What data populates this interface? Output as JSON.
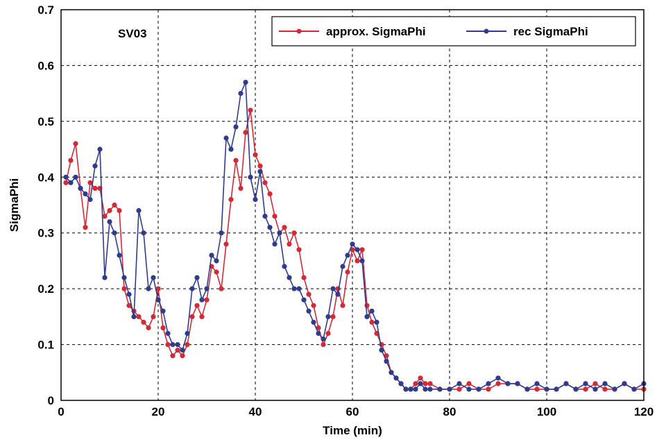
{
  "chart_data": {
    "type": "line",
    "title": "",
    "annotation": "SV03",
    "xlabel": "Time (min)",
    "ylabel": "SigmaPhi",
    "xlim": [
      0,
      120
    ],
    "ylim": [
      0,
      0.7
    ],
    "x_ticks": [
      "0",
      "20",
      "40",
      "60",
      "80",
      "100",
      "120"
    ],
    "y_ticks": [
      "0",
      "0.1",
      "0.2",
      "0.3",
      "0.4",
      "0.5",
      "0.6",
      "0.7"
    ],
    "grid": true,
    "legend_position": "top-right",
    "series": [
      {
        "name": "approx. SigmaPhi",
        "color": "#d42a35",
        "x": [
          1,
          2,
          3,
          4,
          5,
          6,
          7,
          8,
          9,
          10,
          11,
          12,
          13,
          14,
          15,
          16,
          17,
          18,
          19,
          20,
          21,
          22,
          23,
          24,
          25,
          26,
          27,
          28,
          29,
          30,
          31,
          32,
          33,
          34,
          35,
          36,
          37,
          38,
          39,
          40,
          41,
          42,
          43,
          44,
          45,
          46,
          47,
          48,
          49,
          50,
          51,
          52,
          53,
          54,
          55,
          56,
          57,
          58,
          59,
          60,
          61,
          62,
          63,
          64,
          65,
          66,
          67,
          68,
          69,
          70,
          71,
          72,
          73,
          74,
          75,
          76,
          78,
          80,
          82,
          84,
          86,
          88,
          90,
          92,
          94,
          96,
          98,
          100,
          102,
          104,
          106,
          108,
          110,
          112,
          114,
          116,
          118,
          120
        ],
        "values": [
          0.39,
          0.43,
          0.46,
          0.38,
          0.31,
          0.39,
          0.38,
          0.38,
          0.33,
          0.34,
          0.35,
          0.34,
          0.2,
          0.17,
          0.16,
          0.15,
          0.14,
          0.13,
          0.15,
          0.2,
          0.13,
          0.1,
          0.08,
          0.09,
          0.08,
          0.1,
          0.15,
          0.17,
          0.15,
          0.18,
          0.24,
          0.23,
          0.2,
          0.28,
          0.36,
          0.43,
          0.38,
          0.48,
          0.52,
          0.44,
          0.42,
          0.39,
          0.37,
          0.33,
          0.3,
          0.31,
          0.28,
          0.3,
          0.27,
          0.22,
          0.19,
          0.17,
          0.13,
          0.1,
          0.12,
          0.15,
          0.2,
          0.17,
          0.23,
          0.27,
          0.25,
          0.27,
          0.17,
          0.14,
          0.12,
          0.1,
          0.08,
          0.05,
          0.04,
          0.03,
          0.02,
          0.02,
          0.03,
          0.04,
          0.03,
          0.03,
          0.02,
          0.02,
          0.02,
          0.03,
          0.02,
          0.02,
          0.03,
          0.03,
          0.03,
          0.02,
          0.02,
          0.02,
          0.02,
          0.03,
          0.02,
          0.02,
          0.03,
          0.02,
          0.02,
          0.03,
          0.02,
          0.02
        ]
      },
      {
        "name": "rec SigmaPhi",
        "color": "#2f3c8e",
        "x": [
          1,
          2,
          3,
          4,
          5,
          6,
          7,
          8,
          9,
          10,
          11,
          12,
          13,
          14,
          15,
          16,
          17,
          18,
          19,
          20,
          21,
          22,
          23,
          24,
          25,
          26,
          27,
          28,
          29,
          30,
          31,
          32,
          33,
          34,
          35,
          36,
          37,
          38,
          39,
          40,
          41,
          42,
          43,
          44,
          45,
          46,
          47,
          48,
          49,
          50,
          51,
          52,
          53,
          54,
          55,
          56,
          57,
          58,
          59,
          60,
          61,
          62,
          63,
          64,
          65,
          66,
          67,
          68,
          69,
          70,
          71,
          72,
          73,
          74,
          75,
          76,
          78,
          80,
          82,
          84,
          86,
          88,
          90,
          92,
          94,
          96,
          98,
          100,
          102,
          104,
          106,
          108,
          110,
          112,
          114,
          116,
          118,
          120
        ],
        "values": [
          0.4,
          0.39,
          0.4,
          0.38,
          0.37,
          0.36,
          0.42,
          0.45,
          0.22,
          0.32,
          0.3,
          0.26,
          0.22,
          0.19,
          0.15,
          0.34,
          0.3,
          0.2,
          0.22,
          0.18,
          0.16,
          0.12,
          0.1,
          0.1,
          0.09,
          0.12,
          0.2,
          0.22,
          0.18,
          0.2,
          0.26,
          0.25,
          0.3,
          0.47,
          0.45,
          0.49,
          0.55,
          0.57,
          0.4,
          0.36,
          0.41,
          0.33,
          0.31,
          0.28,
          0.3,
          0.24,
          0.22,
          0.2,
          0.2,
          0.18,
          0.16,
          0.14,
          0.12,
          0.11,
          0.15,
          0.2,
          0.19,
          0.24,
          0.26,
          0.28,
          0.27,
          0.25,
          0.15,
          0.16,
          0.14,
          0.09,
          0.07,
          0.05,
          0.04,
          0.03,
          0.02,
          0.02,
          0.02,
          0.03,
          0.02,
          0.02,
          0.02,
          0.02,
          0.03,
          0.02,
          0.02,
          0.03,
          0.04,
          0.03,
          0.03,
          0.02,
          0.03,
          0.02,
          0.02,
          0.03,
          0.02,
          0.03,
          0.02,
          0.03,
          0.02,
          0.03,
          0.02,
          0.03
        ]
      }
    ]
  }
}
